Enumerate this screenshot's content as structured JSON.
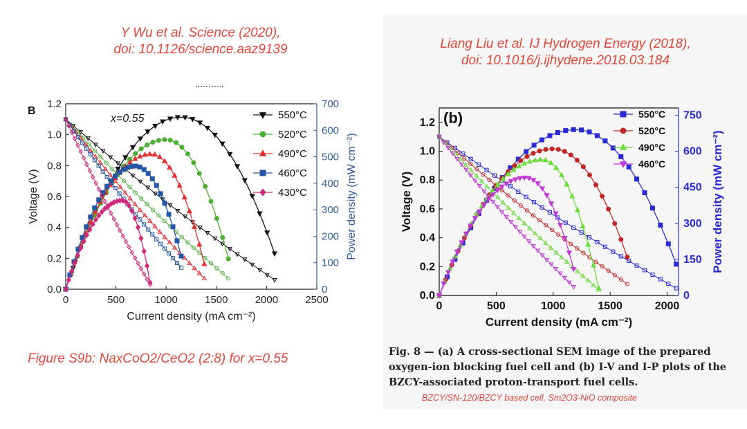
{
  "left": {
    "citation": [
      "Y Wu et al. Science (2020),",
      "doi: 10.1126/science.aaz9139"
    ],
    "caption": "Figure S9b: NaxCoO2/CeO2 (2:8) for x=0.55"
  },
  "right": {
    "citation": [
      "Liang Liu et al. IJ Hydrogen Energy (2018),",
      "doi: 10.1016/j.ijhydene.2018.03.184"
    ],
    "fig_caption": [
      "Fig. 8 — (a) A cross-sectional SEM image of the prepared",
      "oxygen-ion blocking fuel cell and (b) I-V and I-P plots of the",
      "BZCY-associated proton-transport fuel cells."
    ],
    "note": "BZCY/SN-120/BZCY based cell, Sm2O3-NiO composite"
  },
  "chart_data": [
    {
      "type": "line",
      "panel_label": "B",
      "annotation": "x=0.55",
      "xlabel": "Current density (mA cm⁻²)",
      "ylabel": "Voltage (V)",
      "y2label": "Power density (mW cm⁻²)",
      "xlim": [
        0,
        2500
      ],
      "ylim": [
        0,
        1.2
      ],
      "y2lim": [
        0,
        700
      ],
      "xticks": [
        "0",
        "500",
        "1000",
        "1500",
        "2000",
        "2500"
      ],
      "yticks": [
        "0.0",
        "0.2",
        "0.4",
        "0.6",
        "0.8",
        "1.0",
        "1.2"
      ],
      "y2ticks": [
        "0",
        "100",
        "200",
        "300",
        "400",
        "500",
        "600",
        "700"
      ],
      "legend_position": "top-right",
      "series": [
        {
          "name": "550°C",
          "color": "#111111",
          "marker": "triangle-down",
          "ocv": 1.1,
          "imax": 2080,
          "vend": 0.06,
          "pmax": 650,
          "ipeak": 1150,
          "pend": 135
        },
        {
          "name": "520°C",
          "color": "#4caf34",
          "marker": "circle",
          "ocv": 1.1,
          "imax": 1620,
          "vend": 0.07,
          "pmax": 565,
          "ipeak": 1000,
          "pend": 115
        },
        {
          "name": "490°C",
          "color": "#e03030",
          "marker": "triangle-up",
          "ocv": 1.1,
          "imax": 1380,
          "vend": 0.07,
          "pmax": 510,
          "ipeak": 850,
          "pend": 95
        },
        {
          "name": "460°C",
          "color": "#2456a8",
          "marker": "square",
          "ocv": 1.1,
          "imax": 1150,
          "vend": 0.14,
          "pmax": 465,
          "ipeak": 690,
          "pend": 125
        },
        {
          "name": "430°C",
          "color": "#d02a7a",
          "marker": "diamond",
          "ocv": 1.1,
          "imax": 840,
          "vend": 0.03,
          "pmax": 335,
          "ipeak": 560,
          "pend": 25
        }
      ]
    },
    {
      "type": "line",
      "panel_label": "(b)",
      "xlabel": "Current density (mA cm⁻²)",
      "ylabel": "Voltage (V)",
      "y2label": "Power density (mW cm⁻²)",
      "xlim": [
        0,
        2100
      ],
      "ylim": [
        0,
        1.3
      ],
      "y2lim": [
        0,
        780
      ],
      "xticks": [
        "0",
        "500",
        "1000",
        "1500",
        "2000"
      ],
      "yticks": [
        "0.0",
        "0.2",
        "0.4",
        "0.6",
        "0.8",
        "1.0",
        "1.2"
      ],
      "y2ticks": [
        "0",
        "150",
        "300",
        "450",
        "600",
        "750"
      ],
      "legend_position": "top-right",
      "series": [
        {
          "name": "550°C",
          "color": "#2a2ad4",
          "marker": "square",
          "ocv": 1.1,
          "imax": 2080,
          "vend": 0.05,
          "pmax": 690,
          "ipeak": 1200,
          "pend": 130
        },
        {
          "name": "520°C",
          "color": "#c02828",
          "marker": "circle",
          "ocv": 1.1,
          "imax": 1650,
          "vend": 0.08,
          "pmax": 610,
          "ipeak": 1000,
          "pend": 160
        },
        {
          "name": "490°C",
          "color": "#6cdc3c",
          "marker": "triangle-up",
          "ocv": 1.1,
          "imax": 1400,
          "vend": 0.04,
          "pmax": 565,
          "ipeak": 900,
          "pend": 30
        },
        {
          "name": "460°C",
          "color": "#c03ad6",
          "marker": "triangle-down",
          "ocv": 1.1,
          "imax": 1180,
          "vend": 0.06,
          "pmax": 490,
          "ipeak": 760,
          "pend": 110
        }
      ]
    }
  ]
}
